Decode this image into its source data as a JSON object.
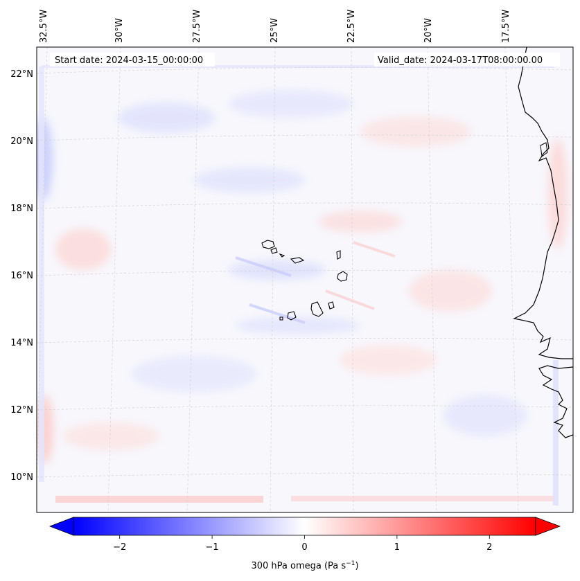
{
  "map": {
    "start_label": "Start date: 2024-03-15_00:00:00",
    "valid_label": "Valid_date: 2024-03-17T08:00:00.00",
    "lon_labels": [
      "32.5°W",
      "30°W",
      "27.5°W",
      "25°W",
      "22.5°W",
      "20°W",
      "17.5°W"
    ],
    "lat_labels": [
      "22°N",
      "20°N",
      "18°N",
      "16°N",
      "14°N",
      "12°N",
      "10°N"
    ]
  },
  "colorbar": {
    "ticks": [
      "−2",
      "−1",
      "0",
      "1",
      "2"
    ],
    "tick_values": [
      -2,
      -1,
      0,
      1,
      2
    ],
    "range": [
      -2.5,
      2.5
    ],
    "label_main": "300 hPa omega (Pa s",
    "label_sup": "−1",
    "label_end": ")"
  },
  "colors": {
    "negative": "#0000ff",
    "zero": "#ffffff",
    "positive": "#ff0000",
    "coast": "#000000",
    "grid": "#cccccc"
  }
}
